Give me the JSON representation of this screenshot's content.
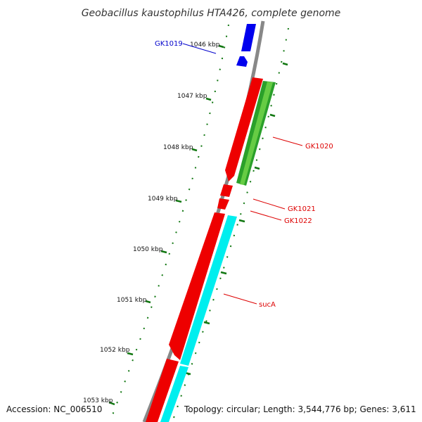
{
  "title": "Geobacillus kaustophilus HTA426, complete genome",
  "footer": {
    "accession": "Accession: NC_006510",
    "stats": "Topology: circular; Length: 3,544,776 bp; Genes: 3,611"
  },
  "ticks": [
    "1046 kbp",
    "1047 kbp",
    "1048 kbp",
    "1049 kbp",
    "1050 kbp",
    "1051 kbp",
    "1052 kbp",
    "1053 kbp"
  ],
  "genes": [
    {
      "name": "GK1019",
      "color": "#0000cc"
    },
    {
      "name": "GK1020",
      "color": "#dd0000"
    },
    {
      "name": "GK1021",
      "color": "#dd0000"
    },
    {
      "name": "GK1022",
      "color": "#dd0000"
    },
    {
      "name": "sucA",
      "color": "#dd0000"
    }
  ],
  "colors": {
    "backbone": "#888888",
    "forward_feature": "#0000ee",
    "reverse_feature": "#ee0000",
    "gc_track": "#2aa02a",
    "skew_track": "#00ffff",
    "tick_marks": "#117711"
  }
}
